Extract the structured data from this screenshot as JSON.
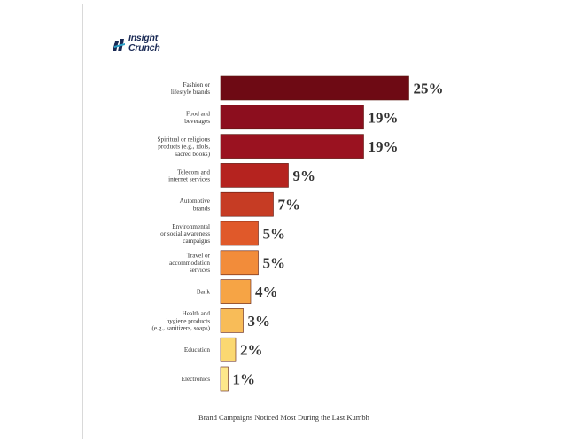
{
  "brand": {
    "line1": "Insight",
    "line2": "Crunch"
  },
  "chart_data": {
    "type": "bar",
    "orientation": "horizontal",
    "title": "Brand Campaigns Noticed Most During the Last Kumbh",
    "categories": [
      [
        "Fashion or",
        "lifestyle brands"
      ],
      [
        "Food and",
        "beverages"
      ],
      [
        "Spiritual or religious",
        "products (e.g., idols,",
        "sacred books)"
      ],
      [
        "Telecom and",
        "internet services"
      ],
      [
        "Automotive",
        "brands"
      ],
      [
        "Environmental",
        "or social awareness",
        "campaigns"
      ],
      [
        "Travel or",
        "accommodation",
        "services"
      ],
      [
        "Bank"
      ],
      [
        "Health and",
        "hygiene products",
        "(e.g., sanitizers, soaps)"
      ],
      [
        "Education"
      ],
      [
        "Electronics"
      ]
    ],
    "values": [
      25,
      19,
      19,
      9,
      7,
      5,
      5,
      4,
      3,
      2,
      1
    ],
    "value_labels": [
      "25%",
      "19%",
      "19%",
      "9%",
      "7%",
      "5%",
      "5%",
      "4%",
      "3%",
      "2%",
      "1%"
    ],
    "colors": [
      "#6e0a14",
      "#8c0e1e",
      "#9a1220",
      "#b5231f",
      "#c63c24",
      "#e0592a",
      "#f28c3a",
      "#f6a445",
      "#f8bc58",
      "#fbd871",
      "#fde78a"
    ],
    "unit": "%",
    "grid": false,
    "legend": "none"
  }
}
